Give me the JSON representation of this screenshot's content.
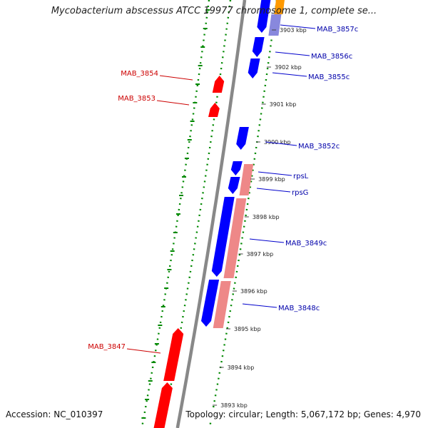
{
  "title": "Mycobacterium abscessus ATCC 19977 chromosome 1, complete se...",
  "footer": {
    "accession": "Accession: NC_010397",
    "topology": "Topology: circular; Length: 5,067,172 bp; Genes: 4,970"
  },
  "colors": {
    "forward_gene": "#ff0000",
    "reverse_gene": "#0000ff",
    "highlight_gene": "#ee8888",
    "orf_orange": "#ff9900",
    "backbone": "#888888",
    "tick_dots": "#008800",
    "label_forward": "#cc0000",
    "label_reverse": "#0000aa"
  },
  "scale": {
    "ticks": [
      {
        "label": "3903 kbp"
      },
      {
        "label": "3902 kbp"
      },
      {
        "label": "3901 kbp"
      },
      {
        "label": "3900 kbp"
      },
      {
        "label": "3899 kbp"
      },
      {
        "label": "3898 kbp"
      },
      {
        "label": "3897 kbp"
      },
      {
        "label": "3896 kbp"
      },
      {
        "label": "3895 kbp"
      },
      {
        "label": "3894 kbp"
      },
      {
        "label": "3893 kbp"
      }
    ]
  },
  "genes": {
    "forward": [
      {
        "name": "MAB_3854"
      },
      {
        "name": "MAB_3853"
      },
      {
        "name": "MAB_3847"
      }
    ],
    "reverse": [
      {
        "name": "MAB_3857c"
      },
      {
        "name": "MAB_3856c"
      },
      {
        "name": "MAB_3855c"
      },
      {
        "name": "MAB_3852c"
      },
      {
        "name": "rpsL"
      },
      {
        "name": "rpsG"
      },
      {
        "name": "MAB_3849c"
      },
      {
        "name": "MAB_3848c"
      }
    ]
  }
}
